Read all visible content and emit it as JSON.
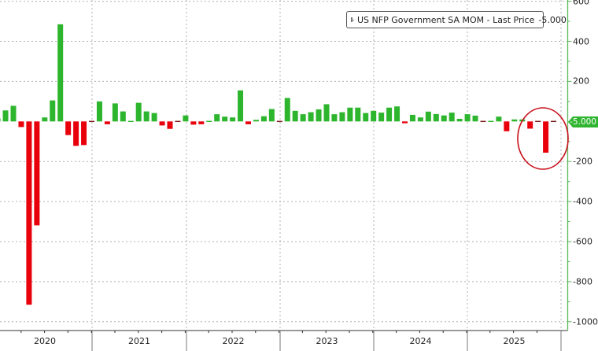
{
  "legend": {
    "series_label": "US NFP Government SA MOM - Last Price",
    "last_value": "-5.000",
    "color": "#2db52d"
  },
  "y_axis": {
    "ticks": [
      "600",
      "400",
      "200",
      "-200",
      "-400",
      "-600",
      "-800",
      "-1000"
    ],
    "last_price_badge": "-5.000",
    "badge_color": "#2fb52f"
  },
  "x_axis": {
    "years": [
      "2020",
      "2021",
      "2022",
      "2023",
      "2024",
      "2025"
    ]
  },
  "colors": {
    "positive": "#2db52d",
    "negative": "#e8000b",
    "highlight_circle": "#c8101a",
    "axis": "#5cb85c",
    "grid": "#b0b0b0"
  },
  "annotation": {
    "type": "ellipse",
    "description": "red circle highlighting latest months"
  },
  "chart_data": {
    "type": "bar",
    "title": "US NFP Government SA MOM",
    "subtitle": "Last Price -5.000",
    "xlabel": "",
    "ylabel": "",
    "ylim": [
      -1000,
      600
    ],
    "y_ticks": [
      600,
      400,
      200,
      0,
      -200,
      -400,
      -600,
      -800,
      -1000
    ],
    "x_tick_labels": [
      "2020",
      "2021",
      "2022",
      "2023",
      "2024",
      "2025"
    ],
    "grid": true,
    "legend_position": "top-right",
    "series": [
      {
        "name": "US NFP Government SA MOM",
        "values": [
          15,
          55,
          78,
          -28,
          -915,
          -519,
          20,
          105,
          485,
          -68,
          -122,
          -118,
          -5,
          100,
          -14,
          90,
          50,
          1,
          93,
          50,
          42,
          -20,
          -37,
          -3,
          30,
          -16,
          -14,
          1,
          36,
          24,
          20,
          155,
          -14,
          8,
          26,
          62,
          -3,
          117,
          53,
          36,
          46,
          60,
          86,
          36,
          46,
          69,
          69,
          42,
          53,
          44,
          69,
          75,
          -9,
          33,
          20,
          49,
          37,
          30,
          44,
          13,
          36,
          29,
          -3,
          3,
          24,
          -49,
          10,
          10,
          -36,
          -3,
          -156,
          -5
        ]
      }
    ]
  }
}
